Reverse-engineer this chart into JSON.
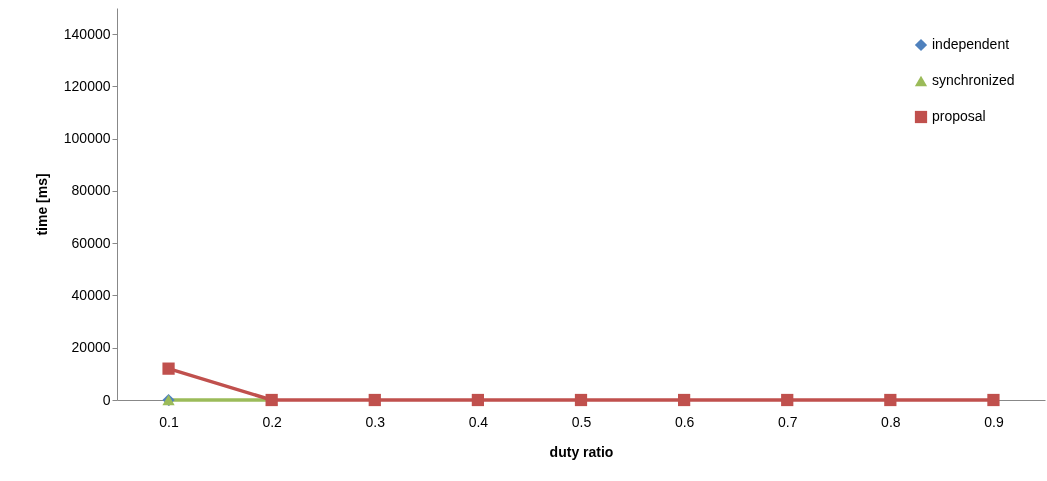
{
  "chart_data": {
    "type": "line",
    "xlabel": "duty ratio",
    "ylabel": "time [ms]",
    "categories": [
      "0.1",
      "0.2",
      "0.3",
      "0.4",
      "0.5",
      "0.6",
      "0.7",
      "0.8",
      "0.9"
    ],
    "series": [
      {
        "name": "independent",
        "color": "#4f81bd",
        "marker": "diamond",
        "values": [
          0,
          null,
          null,
          null,
          null,
          null,
          null,
          null,
          null
        ]
      },
      {
        "name": "synchronized",
        "color": "#9bbb59",
        "marker": "triangle",
        "values": [
          0,
          0,
          null,
          null,
          null,
          null,
          null,
          null,
          null
        ]
      },
      {
        "name": "proposal",
        "color": "#c0504d",
        "marker": "square",
        "values": [
          12000,
          0,
          0,
          0,
          0,
          0,
          0,
          0,
          0
        ]
      }
    ],
    "ylim": [
      0,
      150000
    ],
    "yticks": [
      0,
      20000,
      40000,
      60000,
      80000,
      100000,
      120000,
      140000
    ],
    "grid": false,
    "legend": "top right",
    "line_style": "solid"
  }
}
